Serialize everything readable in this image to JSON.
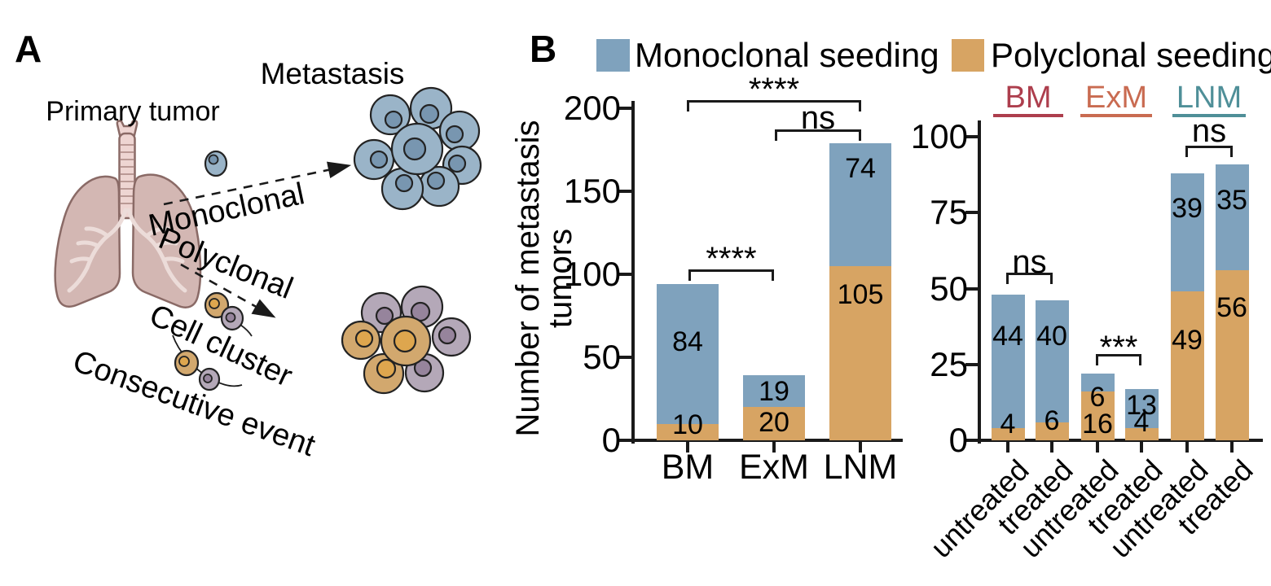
{
  "panel_a": {
    "label": "A",
    "primary_tumor": "Primary tumor",
    "metastasis": "Metastasis",
    "monoclonal": "Monoclonal",
    "polyclonal": "Polyclonal",
    "cell_cluster": "Cell cluster",
    "consecutive_event": "Consecutive event"
  },
  "panel_b": {
    "label": "B",
    "legend": [
      {
        "label": "Monoclonal seeding",
        "color": "#7fa2bd"
      },
      {
        "label": "Polyclonal seeding",
        "color": "#d7a463"
      }
    ],
    "ylabel_line1": "Number of metastasis",
    "ylabel_line2": "tumors"
  },
  "colors": {
    "monoclonal_fill": "#7fa2bd",
    "polyclonal_fill": "#d7a463",
    "bm_header": "#ad3e4d",
    "exm_header": "#c96b51",
    "lnm_header": "#4f8f98"
  },
  "chart_data": [
    {
      "type": "bar",
      "stacked": true,
      "ylabel": "Number of metastasis tumors",
      "categories": [
        "BM",
        "ExM",
        "LNM"
      ],
      "series": [
        {
          "name": "Monoclonal seeding",
          "color": "#7fa2bd",
          "values": [
            84,
            19,
            74
          ]
        },
        {
          "name": "Polyclonal seeding",
          "color": "#d7a463",
          "values": [
            10,
            20,
            105
          ]
        }
      ],
      "totals": [
        94,
        39,
        179
      ],
      "yticks": [
        0,
        50,
        100,
        150,
        200
      ],
      "ylim": [
        0,
        200
      ],
      "grid": false,
      "significance": [
        {
          "between": [
            "BM",
            "LNM"
          ],
          "label": "****"
        },
        {
          "between": [
            "ExM",
            "LNM"
          ],
          "label": "ns"
        },
        {
          "between": [
            "BM",
            "ExM"
          ],
          "label": "****"
        }
      ]
    },
    {
      "type": "bar",
      "stacked": true,
      "group_headers": [
        {
          "label": "BM",
          "color": "#ad3e4d"
        },
        {
          "label": "ExM",
          "color": "#c96b51"
        },
        {
          "label": "LNM",
          "color": "#4f8f98"
        }
      ],
      "categories": [
        "untreated",
        "treated",
        "untreated",
        "treated",
        "untreated",
        "treated"
      ],
      "series": [
        {
          "name": "Monoclonal seeding",
          "color": "#7fa2bd",
          "values": [
            44,
            40,
            6,
            13,
            39,
            35
          ]
        },
        {
          "name": "Polyclonal seeding",
          "color": "#d7a463",
          "values": [
            4,
            6,
            16,
            4,
            49,
            56
          ]
        }
      ],
      "totals": [
        48,
        46,
        22,
        17,
        88,
        91
      ],
      "yticks": [
        0,
        25,
        50,
        75,
        100
      ],
      "ylim": [
        0,
        110
      ],
      "grid": false,
      "significance": [
        {
          "between": [
            "BM untreated",
            "BM treated"
          ],
          "label": "ns"
        },
        {
          "between": [
            "ExM untreated",
            "ExM treated"
          ],
          "label": "***"
        },
        {
          "between": [
            "LNM untreated",
            "LNM treated"
          ],
          "label": "ns"
        }
      ]
    }
  ]
}
